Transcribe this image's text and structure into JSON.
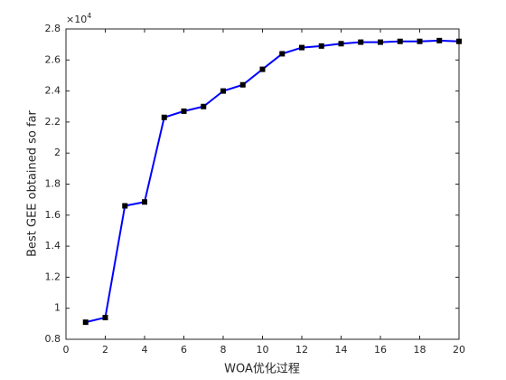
{
  "chart_data": {
    "type": "line",
    "x": [
      1,
      2,
      3,
      4,
      5,
      6,
      7,
      8,
      9,
      10,
      11,
      12,
      13,
      14,
      15,
      16,
      17,
      18,
      19,
      20
    ],
    "series": [
      {
        "color": "#0000ff",
        "marker_color": "#000000",
        "values": [
          0.91,
          0.94,
          1.66,
          1.685,
          2.23,
          2.27,
          2.3,
          2.4,
          2.44,
          2.54,
          2.64,
          2.68,
          2.69,
          2.705,
          2.715,
          2.715,
          2.72,
          2.72,
          2.725,
          2.72
        ]
      }
    ],
    "xlabel": "WOA优化过程",
    "ylabel": "Best GEE obtained so far",
    "y_multiplier": {
      "base": "×10",
      "exponent": "4"
    },
    "xlim": [
      0,
      20
    ],
    "xticks": [
      0,
      2,
      4,
      6,
      8,
      10,
      12,
      14,
      16,
      18,
      20
    ],
    "ylim": [
      0.8,
      2.8
    ],
    "yticks": [
      0.8,
      1,
      1.2,
      1.4,
      1.6,
      1.8,
      2,
      2.2,
      2.4,
      2.6,
      2.8
    ],
    "grid": false
  }
}
